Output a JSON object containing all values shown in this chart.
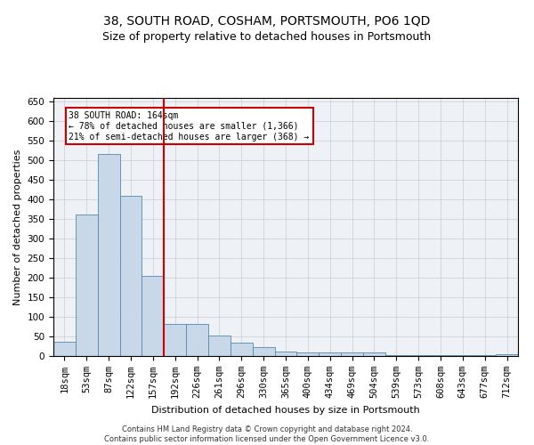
{
  "title_line1": "38, SOUTH ROAD, COSHAM, PORTSMOUTH, PO6 1QD",
  "title_line2": "Size of property relative to detached houses in Portsmouth",
  "xlabel": "Distribution of detached houses by size in Portsmouth",
  "ylabel": "Number of detached properties",
  "categories": [
    "18sqm",
    "53sqm",
    "87sqm",
    "122sqm",
    "157sqm",
    "192sqm",
    "226sqm",
    "261sqm",
    "296sqm",
    "330sqm",
    "365sqm",
    "400sqm",
    "434sqm",
    "469sqm",
    "504sqm",
    "539sqm",
    "573sqm",
    "608sqm",
    "643sqm",
    "677sqm",
    "712sqm"
  ],
  "values": [
    37,
    363,
    517,
    410,
    205,
    83,
    83,
    52,
    35,
    22,
    12,
    8,
    8,
    8,
    8,
    2,
    2,
    2,
    2,
    2,
    5
  ],
  "bar_color": "#c8d8e8",
  "bar_edge_color": "#5588aa",
  "vline_x": 4.5,
  "vline_color": "#cc0000",
  "annotation_text": "38 SOUTH ROAD: 164sqm\n← 78% of detached houses are smaller (1,366)\n21% of semi-detached houses are larger (368) →",
  "annotation_box_color": "#ffffff",
  "annotation_box_edge": "#cc0000",
  "ylim": [
    0,
    660
  ],
  "yticks": [
    0,
    50,
    100,
    150,
    200,
    250,
    300,
    350,
    400,
    450,
    500,
    550,
    600,
    650
  ],
  "grid_color": "#cccccc",
  "background_color": "#eef2f7",
  "footer_line1": "Contains HM Land Registry data © Crown copyright and database right 2024.",
  "footer_line2": "Contains public sector information licensed under the Open Government Licence v3.0.",
  "title1_fontsize": 10,
  "title2_fontsize": 9,
  "axis_label_fontsize": 8,
  "tick_fontsize": 7.5,
  "footer_fontsize": 6,
  "annot_fontsize": 7
}
